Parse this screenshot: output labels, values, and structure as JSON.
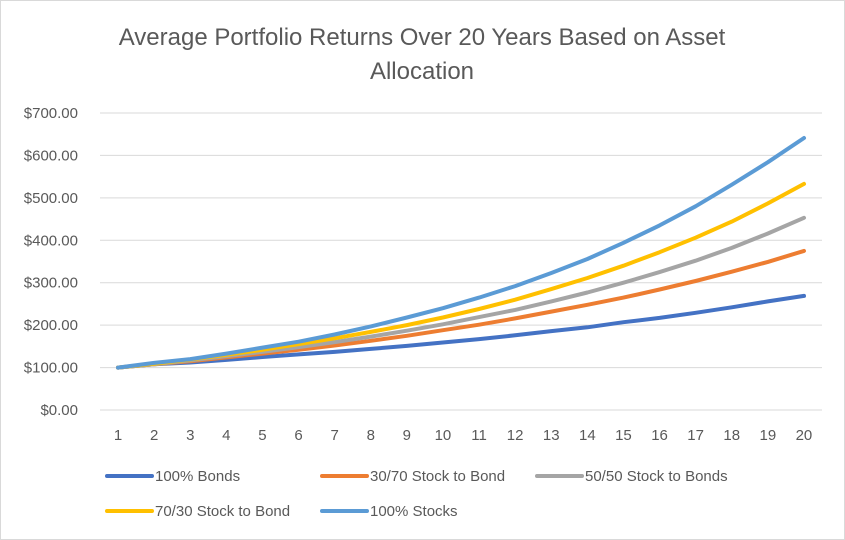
{
  "chart_data": {
    "type": "line",
    "title_line1": "Average Portfolio Returns Over 20 Years Based on Asset",
    "title_line2": "Allocation",
    "xlabel": "",
    "ylabel": "",
    "x": [
      1,
      2,
      3,
      4,
      5,
      6,
      7,
      8,
      9,
      10,
      11,
      12,
      13,
      14,
      15,
      16,
      17,
      18,
      19,
      20
    ],
    "ylim": [
      0,
      700
    ],
    "yticks": [
      0,
      100,
      200,
      300,
      400,
      500,
      600,
      700
    ],
    "ytick_labels": [
      "$0.00",
      "$100.00",
      "$200.00",
      "$300.00",
      "$400.00",
      "$500.00",
      "$600.00",
      "$700.00"
    ],
    "grid": true,
    "legend_position": "bottom",
    "series": [
      {
        "name": "100% Bonds",
        "color": "#4472c4",
        "values": [
          100,
          108,
          112,
          118,
          125,
          131,
          137,
          144,
          151,
          159,
          167,
          176,
          186,
          195,
          207,
          217,
          229,
          242,
          256,
          269
        ]
      },
      {
        "name": "30/70 Stock to Bond",
        "color": "#ed7d31",
        "values": [
          100,
          108,
          115,
          124,
          133,
          142,
          152,
          163,
          175,
          188,
          201,
          216,
          232,
          248,
          265,
          284,
          304,
          326,
          349,
          375
        ]
      },
      {
        "name": "50/50 Stock to Bonds",
        "color": "#a5a5a5",
        "values": [
          100,
          108,
          117,
          127,
          137,
          148,
          160,
          173,
          187,
          202,
          219,
          236,
          256,
          277,
          300,
          325,
          352,
          382,
          416,
          453
        ]
      },
      {
        "name": "70/30 Stock to Bond",
        "color": "#ffc000",
        "values": [
          100,
          109,
          119,
          130,
          142,
          155,
          169,
          184,
          200,
          218,
          238,
          260,
          285,
          311,
          340,
          372,
          406,
          444,
          487,
          533
        ]
      },
      {
        "name": "100% Stocks",
        "color": "#5b9bd5",
        "values": [
          100,
          111,
          120,
          133,
          147,
          161,
          178,
          197,
          218,
          240,
          265,
          292,
          323,
          356,
          394,
          435,
          480,
          531,
          584,
          641
        ]
      }
    ]
  }
}
